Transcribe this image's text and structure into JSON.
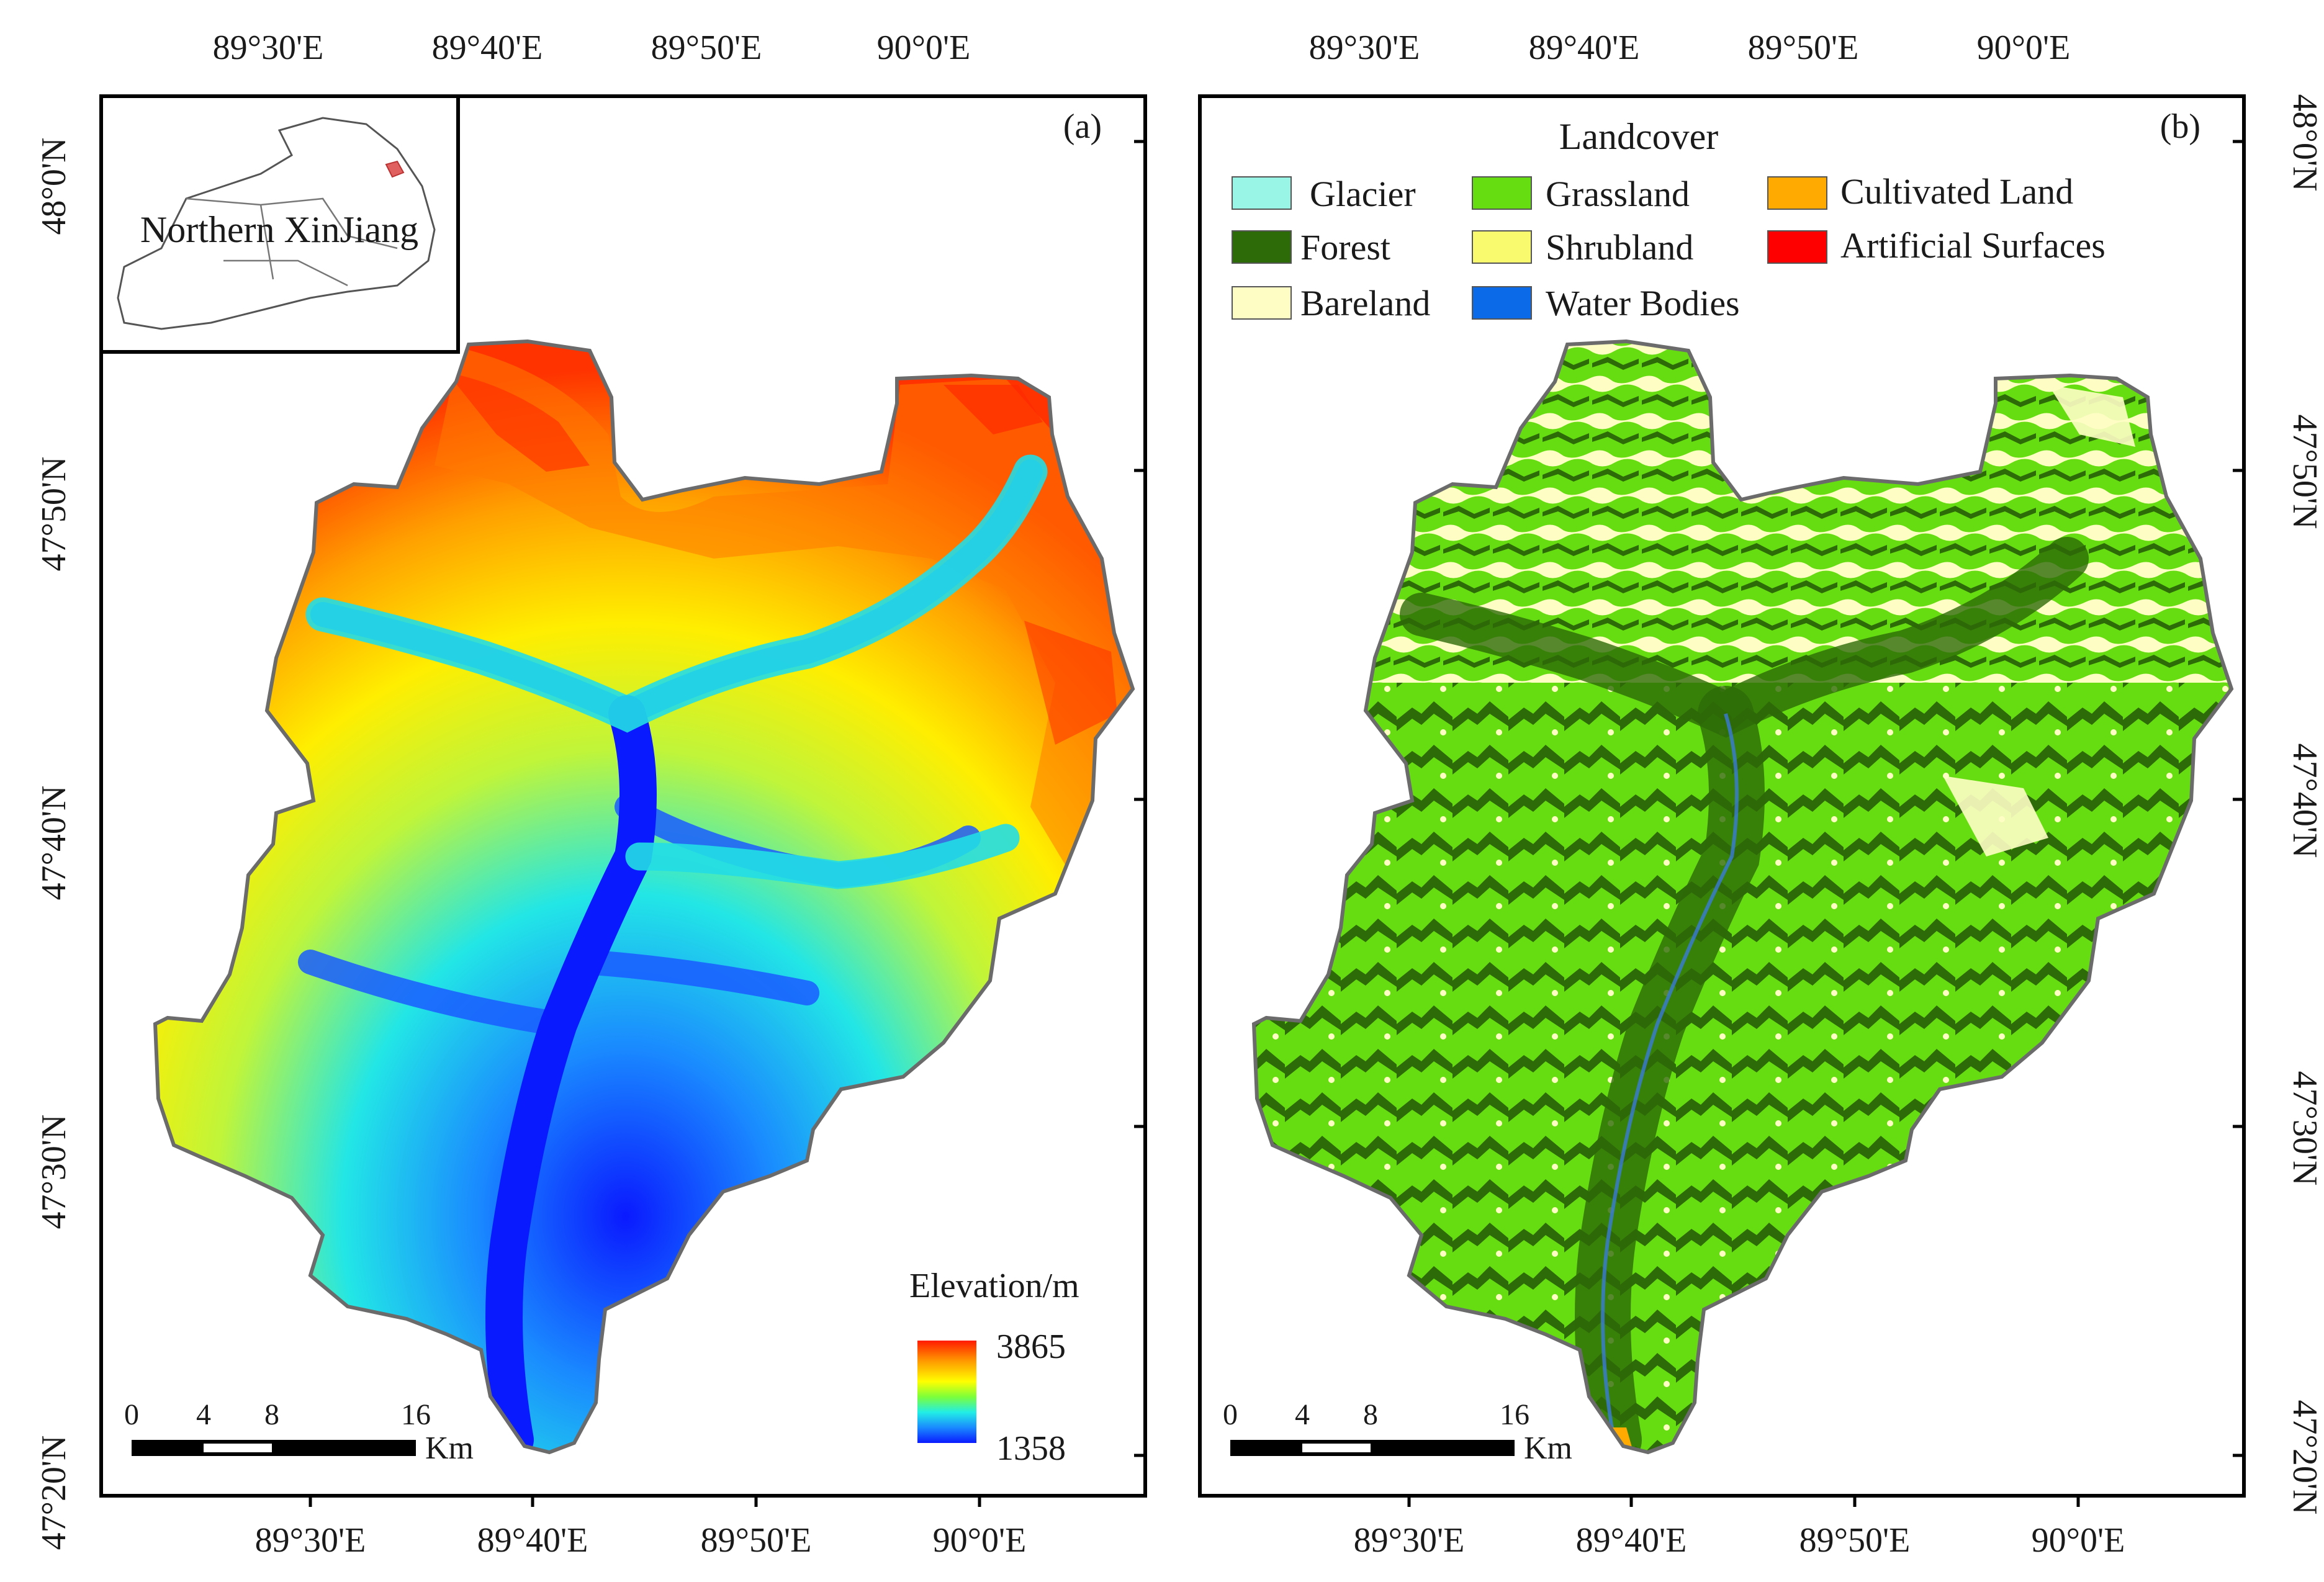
{
  "panel_a": {
    "label": "(a)",
    "inset_label": "Northern XinJiang",
    "legend_title": "Elevation/m",
    "elev_max": "3865",
    "elev_min": "1358",
    "scale_ticks": [
      "0",
      "4",
      "8",
      "16"
    ],
    "scale_unit": "Km",
    "top_lon_labels": [
      "89°30'E",
      "89°40'E",
      "89°50'E",
      "90°0'E"
    ],
    "bottom_lon_labels": [
      "89°30'E",
      "89°40'E",
      "89°50'E",
      "90°0'E"
    ],
    "left_lat_labels": [
      "48°0'N",
      "47°50'N",
      "47°40'N",
      "47°30'N",
      "47°20'N"
    ]
  },
  "panel_b": {
    "label": "(b)",
    "legend_title": "Landcover",
    "legend_items": [
      {
        "name": "Glacier",
        "color": "#99f5e6"
      },
      {
        "name": "Grassland",
        "color": "#66dd11"
      },
      {
        "name": "Cultivated Land",
        "color": "#ffaa00"
      },
      {
        "name": "Forest",
        "color": "#2d6a08"
      },
      {
        "name": "Shrubland",
        "color": "#fafa6e"
      },
      {
        "name": "Artificial Surfaces",
        "color": "#ff0000"
      },
      {
        "name": "Bareland",
        "color": "#fefec4"
      },
      {
        "name": "Water Bodies",
        "color": "#0a6ae8"
      }
    ],
    "scale_ticks": [
      "0",
      "4",
      "8",
      "16"
    ],
    "scale_unit": "Km",
    "top_lon_labels": [
      "89°30'E",
      "89°40'E",
      "89°50'E",
      "90°0'E"
    ],
    "bottom_lon_labels": [
      "89°30'E",
      "89°40'E",
      "89°50'E",
      "90°0'E"
    ],
    "right_lat_labels": [
      "48°0'N",
      "47°50'N",
      "47°40'N",
      "47°30'N",
      "47°20'N"
    ]
  },
  "colors": {
    "elev_high": "#ff1a00",
    "elev_mid": "#ffff00",
    "elev_low": "#0a1aff",
    "boundary": "#666666"
  }
}
